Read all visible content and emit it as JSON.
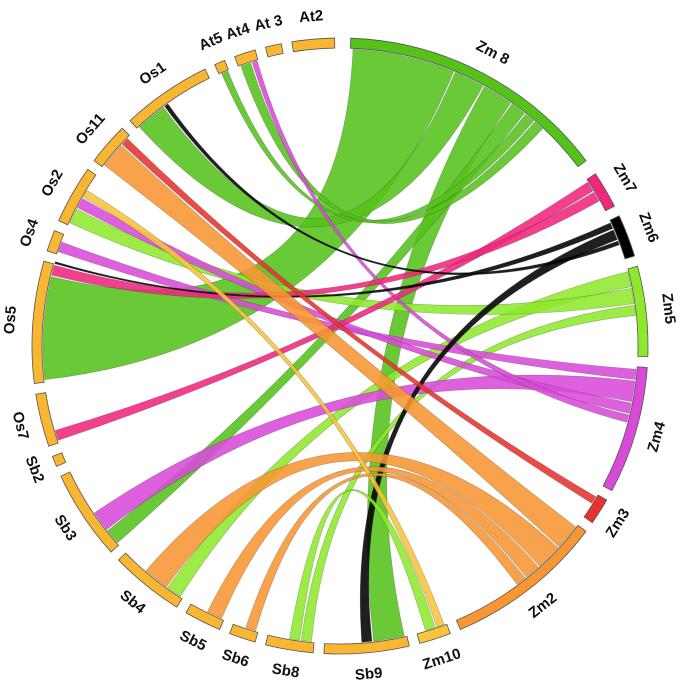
{
  "segments": [
    {
      "id": "Zm8",
      "label": "Zm 8",
      "color": "#55c21a"
    },
    {
      "id": "Zm7",
      "label": "Zm7",
      "color": "#f0257c"
    },
    {
      "id": "Zm6",
      "label": "Zm6",
      "color": "#000000"
    },
    {
      "id": "Zm5",
      "label": "Zm5",
      "color": "#8ee82c"
    },
    {
      "id": "Zm4",
      "label": "Zm4",
      "color": "#d94ad9"
    },
    {
      "id": "Zm3",
      "label": "Zm3",
      "color": "#e8322e"
    },
    {
      "id": "Zm2",
      "label": "Zm2",
      "color": "#f79633"
    },
    {
      "id": "Zm10",
      "label": "Zm10",
      "color": "#f8c43c"
    },
    {
      "id": "Sb9",
      "label": "Sb9",
      "color": "#f8b632"
    },
    {
      "id": "Sb8",
      "label": "Sb8",
      "color": "#f8b632"
    },
    {
      "id": "Sb6",
      "label": "Sb6",
      "color": "#f8b632"
    },
    {
      "id": "Sb5",
      "label": "Sb5",
      "color": "#f8b632"
    },
    {
      "id": "Sb4",
      "label": "Sb4",
      "color": "#f8b632"
    },
    {
      "id": "Sb3",
      "label": "Sb3",
      "color": "#f8b632"
    },
    {
      "id": "Sb2",
      "label": "Sb2",
      "color": "#f8b632"
    },
    {
      "id": "Os7",
      "label": "Os7",
      "color": "#f8b632"
    },
    {
      "id": "Os5",
      "label": "Os5",
      "color": "#f8b632"
    },
    {
      "id": "Os4",
      "label": "Os4",
      "color": "#f8b632"
    },
    {
      "id": "Os2",
      "label": "Os2",
      "color": "#f8b632"
    },
    {
      "id": "Os11",
      "label": "Os11",
      "color": "#f8b632"
    },
    {
      "id": "Os1",
      "label": "Os1",
      "color": "#f8b632"
    },
    {
      "id": "At5",
      "label": "At5",
      "color": "#f8b632"
    },
    {
      "id": "At4",
      "label": "At4",
      "color": "#f8b632"
    },
    {
      "id": "At3",
      "label": "At 3",
      "color": "#f8b632"
    },
    {
      "id": "At2",
      "label": "At2",
      "color": "#f8b632"
    }
  ],
  "links": [
    {
      "from": "Zm8",
      "to": "Os5",
      "color": "#55c21a"
    },
    {
      "from": "Zm8",
      "to": "Os1",
      "color": "#55c21a"
    },
    {
      "from": "Zm8",
      "to": "Sb9",
      "color": "#55c21a"
    },
    {
      "from": "Zm8",
      "to": "Sb3",
      "color": "#55c21a"
    },
    {
      "from": "Zm8",
      "to": "At5",
      "color": "#55c21a"
    },
    {
      "from": "Zm8",
      "to": "At4",
      "color": "#55c21a"
    },
    {
      "from": "Zm5",
      "to": "Sb4",
      "color": "#8ee82c"
    },
    {
      "from": "Zm5",
      "to": "Os2",
      "color": "#8ee82c"
    },
    {
      "from": "Zm5",
      "to": "Sb8",
      "color": "#8ee82c"
    },
    {
      "from": "Zm4",
      "to": "Os4",
      "color": "#d94ad9"
    },
    {
      "from": "Zm4",
      "to": "Sb3",
      "color": "#d94ad9"
    },
    {
      "from": "Zm4",
      "to": "Os2",
      "color": "#d94ad9"
    },
    {
      "from": "Zm4",
      "to": "At4",
      "color": "#d94ad9"
    },
    {
      "from": "Zm7",
      "to": "Os7",
      "color": "#f0257c"
    },
    {
      "from": "Zm7",
      "to": "Os5",
      "color": "#f0257c"
    },
    {
      "from": "Zm6",
      "to": "Os5",
      "color": "#000000"
    },
    {
      "from": "Zm6",
      "to": "Sb9",
      "color": "#000000"
    },
    {
      "from": "Zm6",
      "to": "Os1",
      "color": "#000000"
    },
    {
      "from": "Zm2",
      "to": "Os11",
      "color": "#f79633"
    },
    {
      "from": "Zm2",
      "to": "Sb4",
      "color": "#f79633"
    },
    {
      "from": "Zm2",
      "to": "Sb5",
      "color": "#f79633"
    },
    {
      "from": "Zm3",
      "to": "Os11",
      "color": "#e8322e"
    },
    {
      "from": "Zm10",
      "to": "Os2",
      "color": "#f8c43c"
    },
    {
      "from": "Zm10",
      "to": "Sb8",
      "color": "#8ee82c"
    },
    {
      "from": "Zm2",
      "to": "Sb6",
      "color": "#f79633"
    }
  ]
}
